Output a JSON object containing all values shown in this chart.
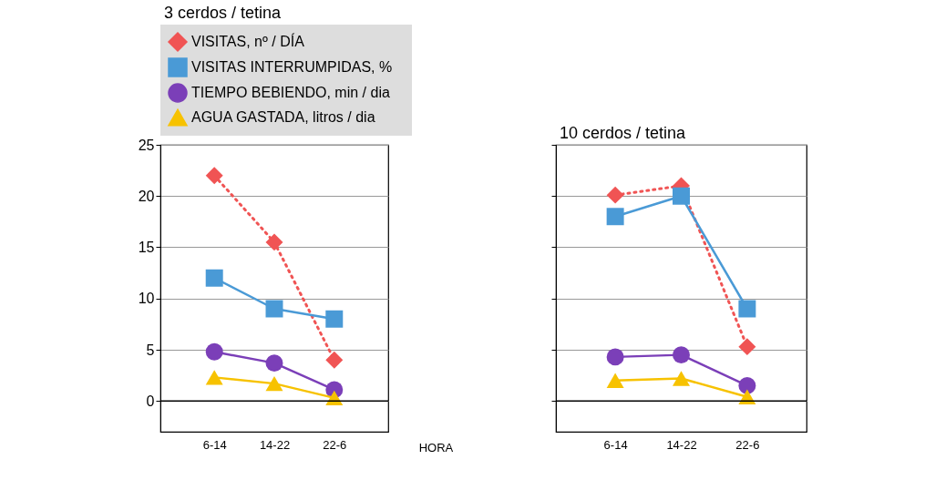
{
  "chart_data": [
    {
      "type": "line",
      "title": "3  cerdos / tetina",
      "xlabel": "HORA",
      "categories": [
        "6-14",
        "14-22",
        "22-6"
      ],
      "ylim": [
        -3,
        25
      ],
      "yticks": [
        0,
        5,
        10,
        15,
        20,
        25
      ],
      "grid": "y",
      "legend": "top",
      "series": [
        {
          "name": "VISITAS, nº  / DÍA",
          "color": "#f05454",
          "marker": "diamond",
          "line_style": "dotted",
          "values": [
            22,
            15.5,
            4
          ]
        },
        {
          "name": "VISITAS   INTERRUMPIDAS,  %",
          "color": "#4a9ad6",
          "marker": "square",
          "line_style": "solid",
          "values": [
            12,
            9,
            8
          ]
        },
        {
          "name": "TIEMPO BEBIENDO,  min  / dia",
          "color": "#7b3fb8",
          "marker": "circle",
          "line_style": "solid",
          "values": [
            4.8,
            3.7,
            1.1
          ]
        },
        {
          "name": "AGUA GASTADA, litros / dia",
          "color": "#f7c200",
          "marker": "triangle",
          "line_style": "solid",
          "values": [
            2.3,
            1.7,
            0.3
          ]
        }
      ]
    },
    {
      "type": "line",
      "title": "10  cerdos / tetina",
      "categories": [
        "6-14",
        "14-22",
        "22-6"
      ],
      "ylim": [
        -3,
        25
      ],
      "yticks": [
        0,
        5,
        10,
        15,
        20,
        25
      ],
      "grid": "y",
      "tick_labels": "x",
      "series": [
        {
          "color": "#f05454",
          "marker": "diamond",
          "line_style": "dotted",
          "values": [
            20.1,
            21,
            5.3
          ]
        },
        {
          "color": "#4a9ad6",
          "marker": "square",
          "line_style": "solid",
          "values": [
            18,
            20,
            9
          ]
        },
        {
          "color": "#7b3fb8",
          "marker": "circle",
          "line_style": "solid",
          "values": [
            4.3,
            4.5,
            1.5
          ]
        },
        {
          "color": "#f7c200",
          "marker": "triangle",
          "line_style": "solid",
          "values": [
            2,
            2.2,
            0.4
          ]
        }
      ]
    }
  ]
}
